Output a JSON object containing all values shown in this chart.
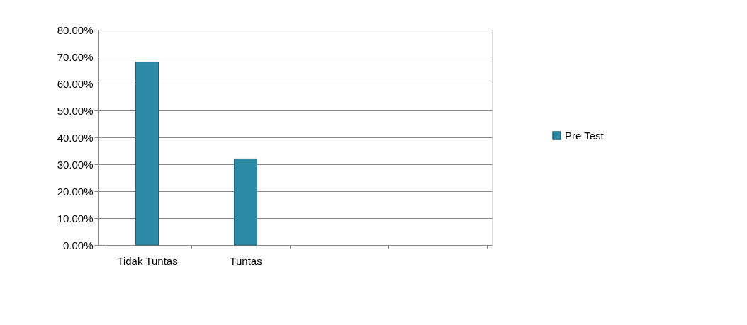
{
  "chart_data": {
    "type": "bar",
    "categories": [
      "Tidak Tuntas",
      "Tuntas",
      null,
      null
    ],
    "series": [
      {
        "name": "Pre Test",
        "color": "#2b8ba6",
        "values": [
          68,
          32,
          null,
          null
        ]
      }
    ],
    "ylim": [
      0,
      80
    ],
    "yticks": [
      {
        "value": 0,
        "label": "0.00%"
      },
      {
        "value": 10,
        "label": "10.00%"
      },
      {
        "value": 20,
        "label": "20.00%"
      },
      {
        "value": 30,
        "label": "30.00%"
      },
      {
        "value": 40,
        "label": "40.00%"
      },
      {
        "value": 50,
        "label": "50.00%"
      },
      {
        "value": 60,
        "label": "60.00%"
      },
      {
        "value": 70,
        "label": "70.00%"
      },
      {
        "value": 80,
        "label": "80.00%"
      }
    ],
    "grid": "y",
    "legend": "right"
  }
}
